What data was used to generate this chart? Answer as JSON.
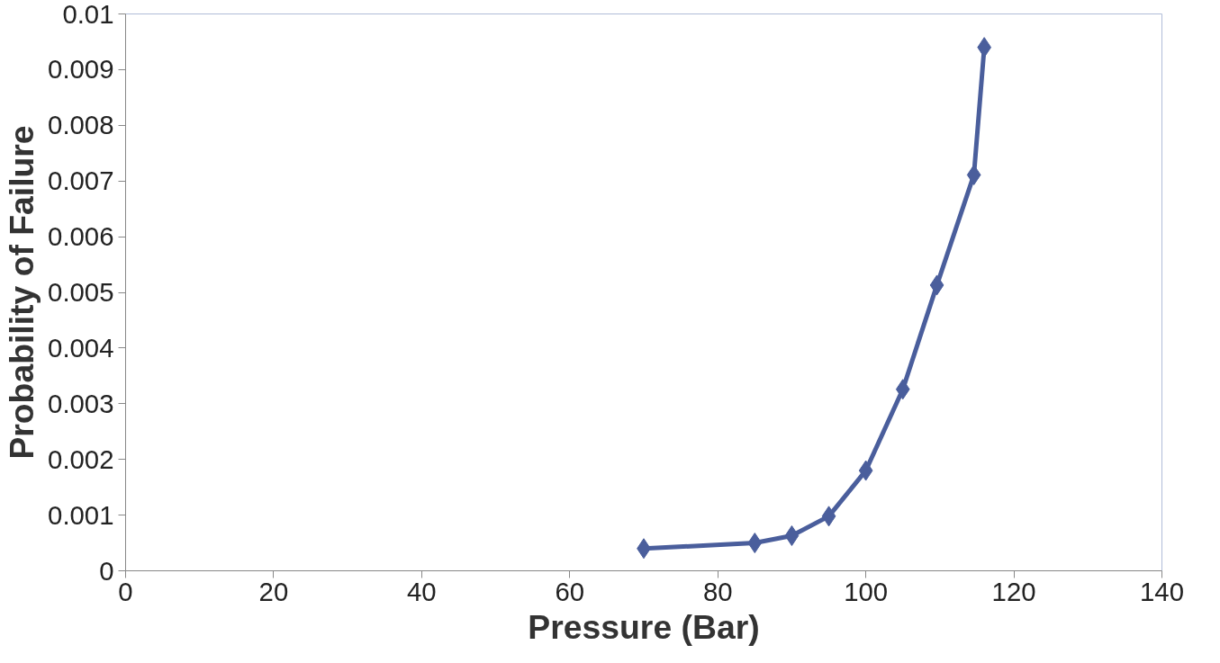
{
  "chart_data": {
    "type": "line",
    "xlabel": "Pressure (Bar)",
    "ylabel": "Probability of Failure",
    "x": [
      70,
      85,
      90,
      95,
      100,
      105,
      109.6,
      114.6,
      116
    ],
    "series": [
      {
        "color": "#4a5e9c",
        "values": [
          0.0004,
          0.0005,
          0.00063,
          0.00098,
          0.0018,
          0.00326,
          0.00513,
          0.00711,
          0.0094
        ]
      }
    ],
    "xlim": [
      0,
      140
    ],
    "xticks": [
      0,
      20,
      40,
      60,
      80,
      100,
      120,
      140
    ],
    "ylim": [
      0,
      0.01
    ],
    "yticks": [
      {
        "value": 0,
        "label": "0"
      },
      {
        "value": 0.001,
        "label": "0.001"
      },
      {
        "value": 0.002,
        "label": "0.002"
      },
      {
        "value": 0.003,
        "label": "0.003"
      },
      {
        "value": 0.004,
        "label": "0.004"
      },
      {
        "value": 0.005,
        "label": "0.005"
      },
      {
        "value": 0.006,
        "label": "0.006"
      },
      {
        "value": 0.007,
        "label": "0.007"
      },
      {
        "value": 0.008,
        "label": "0.008"
      },
      {
        "value": 0.009,
        "label": "0.009"
      },
      {
        "value": 0.01,
        "label": "0.01"
      }
    ],
    "grid": false,
    "marker": "diamond",
    "line_style": "solid"
  }
}
